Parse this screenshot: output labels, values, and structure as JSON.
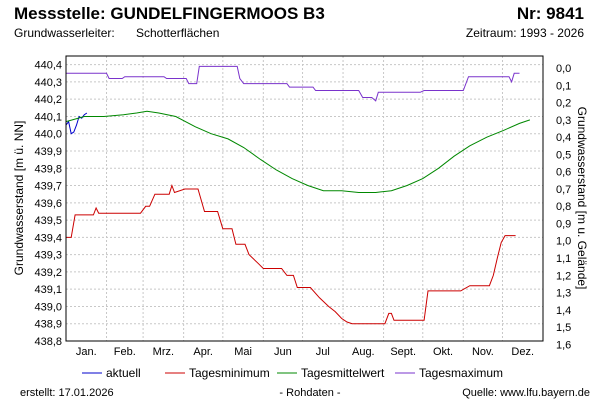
{
  "header": {
    "title": "Messstelle: GUNDELFINGERMOOS B3",
    "number": "Nr: 9841",
    "aquifer_label": "Grundwasserleiter:",
    "aquifer_value": "Schotterflächen",
    "period": "Zeitraum: 1993 - 2026"
  },
  "footer": {
    "created": "erstellt:  17.01.2026",
    "raw": "- Rohdaten -",
    "source": "Quelle: www.lfu.bayern.de"
  },
  "chart_data": {
    "type": "line",
    "ylabel": "Grundwasserstand [m ü. NN]",
    "y2label": "Grundwasserstand [m u. Gelände]",
    "ylim": [
      438.8,
      440.45
    ],
    "y2lim": [
      0.0,
      1.65
    ],
    "yticks": [
      "438,8",
      "438,9",
      "439,0",
      "439,1",
      "439,2",
      "439,3",
      "439,4",
      "439,5",
      "439,6",
      "439,7",
      "439,8",
      "439,9",
      "440,0",
      "440,1",
      "440,2",
      "440,3",
      "440,4"
    ],
    "y2ticks": [
      "0,0",
      "0,1",
      "0,2",
      "0,3",
      "0,4",
      "0,5",
      "0,6",
      "0,7",
      "0,8",
      "0,9",
      "1,0",
      "1,1",
      "1,2",
      "1,3",
      "1,4",
      "1,5",
      "1,6"
    ],
    "xlim": [
      1,
      366
    ],
    "months": [
      "Jan.",
      "Feb.",
      "Mrz.",
      "Apr.",
      "Mai",
      "Jun",
      "Jul",
      "Aug.",
      "Sept.",
      "Okt.",
      "Nov.",
      "Dez."
    ],
    "grid": true,
    "legend_position": "bottom",
    "series": [
      {
        "name": "aktuell",
        "color": "#0000cc",
        "points": [
          [
            1,
            440.05
          ],
          [
            3,
            440.07
          ],
          [
            5,
            440.0
          ],
          [
            7,
            440.01
          ],
          [
            9,
            440.05
          ],
          [
            11,
            440.1
          ],
          [
            13,
            440.09
          ],
          [
            15,
            440.11
          ],
          [
            17,
            440.12
          ]
        ]
      },
      {
        "name": "Tagesminimum",
        "color": "#cc0000",
        "points": [
          [
            1,
            439.4
          ],
          [
            5,
            439.4
          ],
          [
            8,
            439.53
          ],
          [
            22,
            439.53
          ],
          [
            24,
            439.57
          ],
          [
            26,
            439.54
          ],
          [
            58,
            439.54
          ],
          [
            62,
            439.58
          ],
          [
            65,
            439.58
          ],
          [
            69,
            439.65
          ],
          [
            80,
            439.65
          ],
          [
            82,
            439.7
          ],
          [
            84,
            439.66
          ],
          [
            92,
            439.68
          ],
          [
            102,
            439.68
          ],
          [
            107,
            439.55
          ],
          [
            117,
            439.55
          ],
          [
            121,
            439.45
          ],
          [
            128,
            439.45
          ],
          [
            131,
            439.36
          ],
          [
            138,
            439.36
          ],
          [
            141,
            439.3
          ],
          [
            148,
            439.25
          ],
          [
            152,
            439.22
          ],
          [
            166,
            439.22
          ],
          [
            170,
            439.18
          ],
          [
            175,
            439.18
          ],
          [
            178,
            439.11
          ],
          [
            188,
            439.11
          ],
          [
            195,
            439.05
          ],
          [
            202,
            439.0
          ],
          [
            207,
            438.97
          ],
          [
            212,
            438.93
          ],
          [
            216,
            438.91
          ],
          [
            220,
            438.9
          ],
          [
            240,
            438.9
          ],
          [
            245,
            438.9
          ],
          [
            248,
            438.96
          ],
          [
            250,
            438.96
          ],
          [
            252,
            438.92
          ],
          [
            275,
            438.92
          ],
          [
            278,
            439.09
          ],
          [
            303,
            439.09
          ],
          [
            310,
            439.12
          ],
          [
            325,
            439.12
          ],
          [
            328,
            439.18
          ],
          [
            331,
            439.28
          ],
          [
            334,
            439.37
          ],
          [
            337,
            439.41
          ],
          [
            345,
            439.41
          ]
        ]
      },
      {
        "name": "Tagesmittelwert",
        "color": "#008800",
        "points": [
          [
            1,
            440.07
          ],
          [
            15,
            440.1
          ],
          [
            30,
            440.1
          ],
          [
            45,
            440.11
          ],
          [
            55,
            440.12
          ],
          [
            63,
            440.13
          ],
          [
            72,
            440.12
          ],
          [
            85,
            440.1
          ],
          [
            100,
            440.04
          ],
          [
            112,
            440.0
          ],
          [
            125,
            439.97
          ],
          [
            137,
            439.92
          ],
          [
            150,
            439.85
          ],
          [
            162,
            439.79
          ],
          [
            174,
            439.74
          ],
          [
            186,
            439.7
          ],
          [
            198,
            439.67
          ],
          [
            212,
            439.67
          ],
          [
            225,
            439.66
          ],
          [
            238,
            439.66
          ],
          [
            250,
            439.67
          ],
          [
            262,
            439.7
          ],
          [
            274,
            439.74
          ],
          [
            286,
            439.8
          ],
          [
            298,
            439.87
          ],
          [
            310,
            439.93
          ],
          [
            323,
            439.98
          ],
          [
            336,
            440.02
          ],
          [
            348,
            440.06
          ],
          [
            356,
            440.08
          ]
        ]
      },
      {
        "name": "Tagesmaximum",
        "color": "#7a33cc",
        "points": [
          [
            1,
            440.35
          ],
          [
            32,
            440.35
          ],
          [
            34,
            440.32
          ],
          [
            44,
            440.32
          ],
          [
            46,
            440.33
          ],
          [
            76,
            440.33
          ],
          [
            78,
            440.32
          ],
          [
            93,
            440.32
          ],
          [
            95,
            440.29
          ],
          [
            101,
            440.29
          ],
          [
            103,
            440.39
          ],
          [
            132,
            440.39
          ],
          [
            134,
            440.32
          ],
          [
            137,
            440.29
          ],
          [
            170,
            440.29
          ],
          [
            172,
            440.27
          ],
          [
            190,
            440.27
          ],
          [
            192,
            440.25
          ],
          [
            225,
            440.25
          ],
          [
            228,
            440.21
          ],
          [
            235,
            440.21
          ],
          [
            238,
            440.19
          ],
          [
            240,
            440.24
          ],
          [
            272,
            440.24
          ],
          [
            275,
            440.25
          ],
          [
            305,
            440.25
          ],
          [
            309,
            440.33
          ],
          [
            340,
            440.33
          ],
          [
            342,
            440.3
          ],
          [
            344,
            440.35
          ],
          [
            348,
            440.35
          ]
        ]
      }
    ]
  }
}
